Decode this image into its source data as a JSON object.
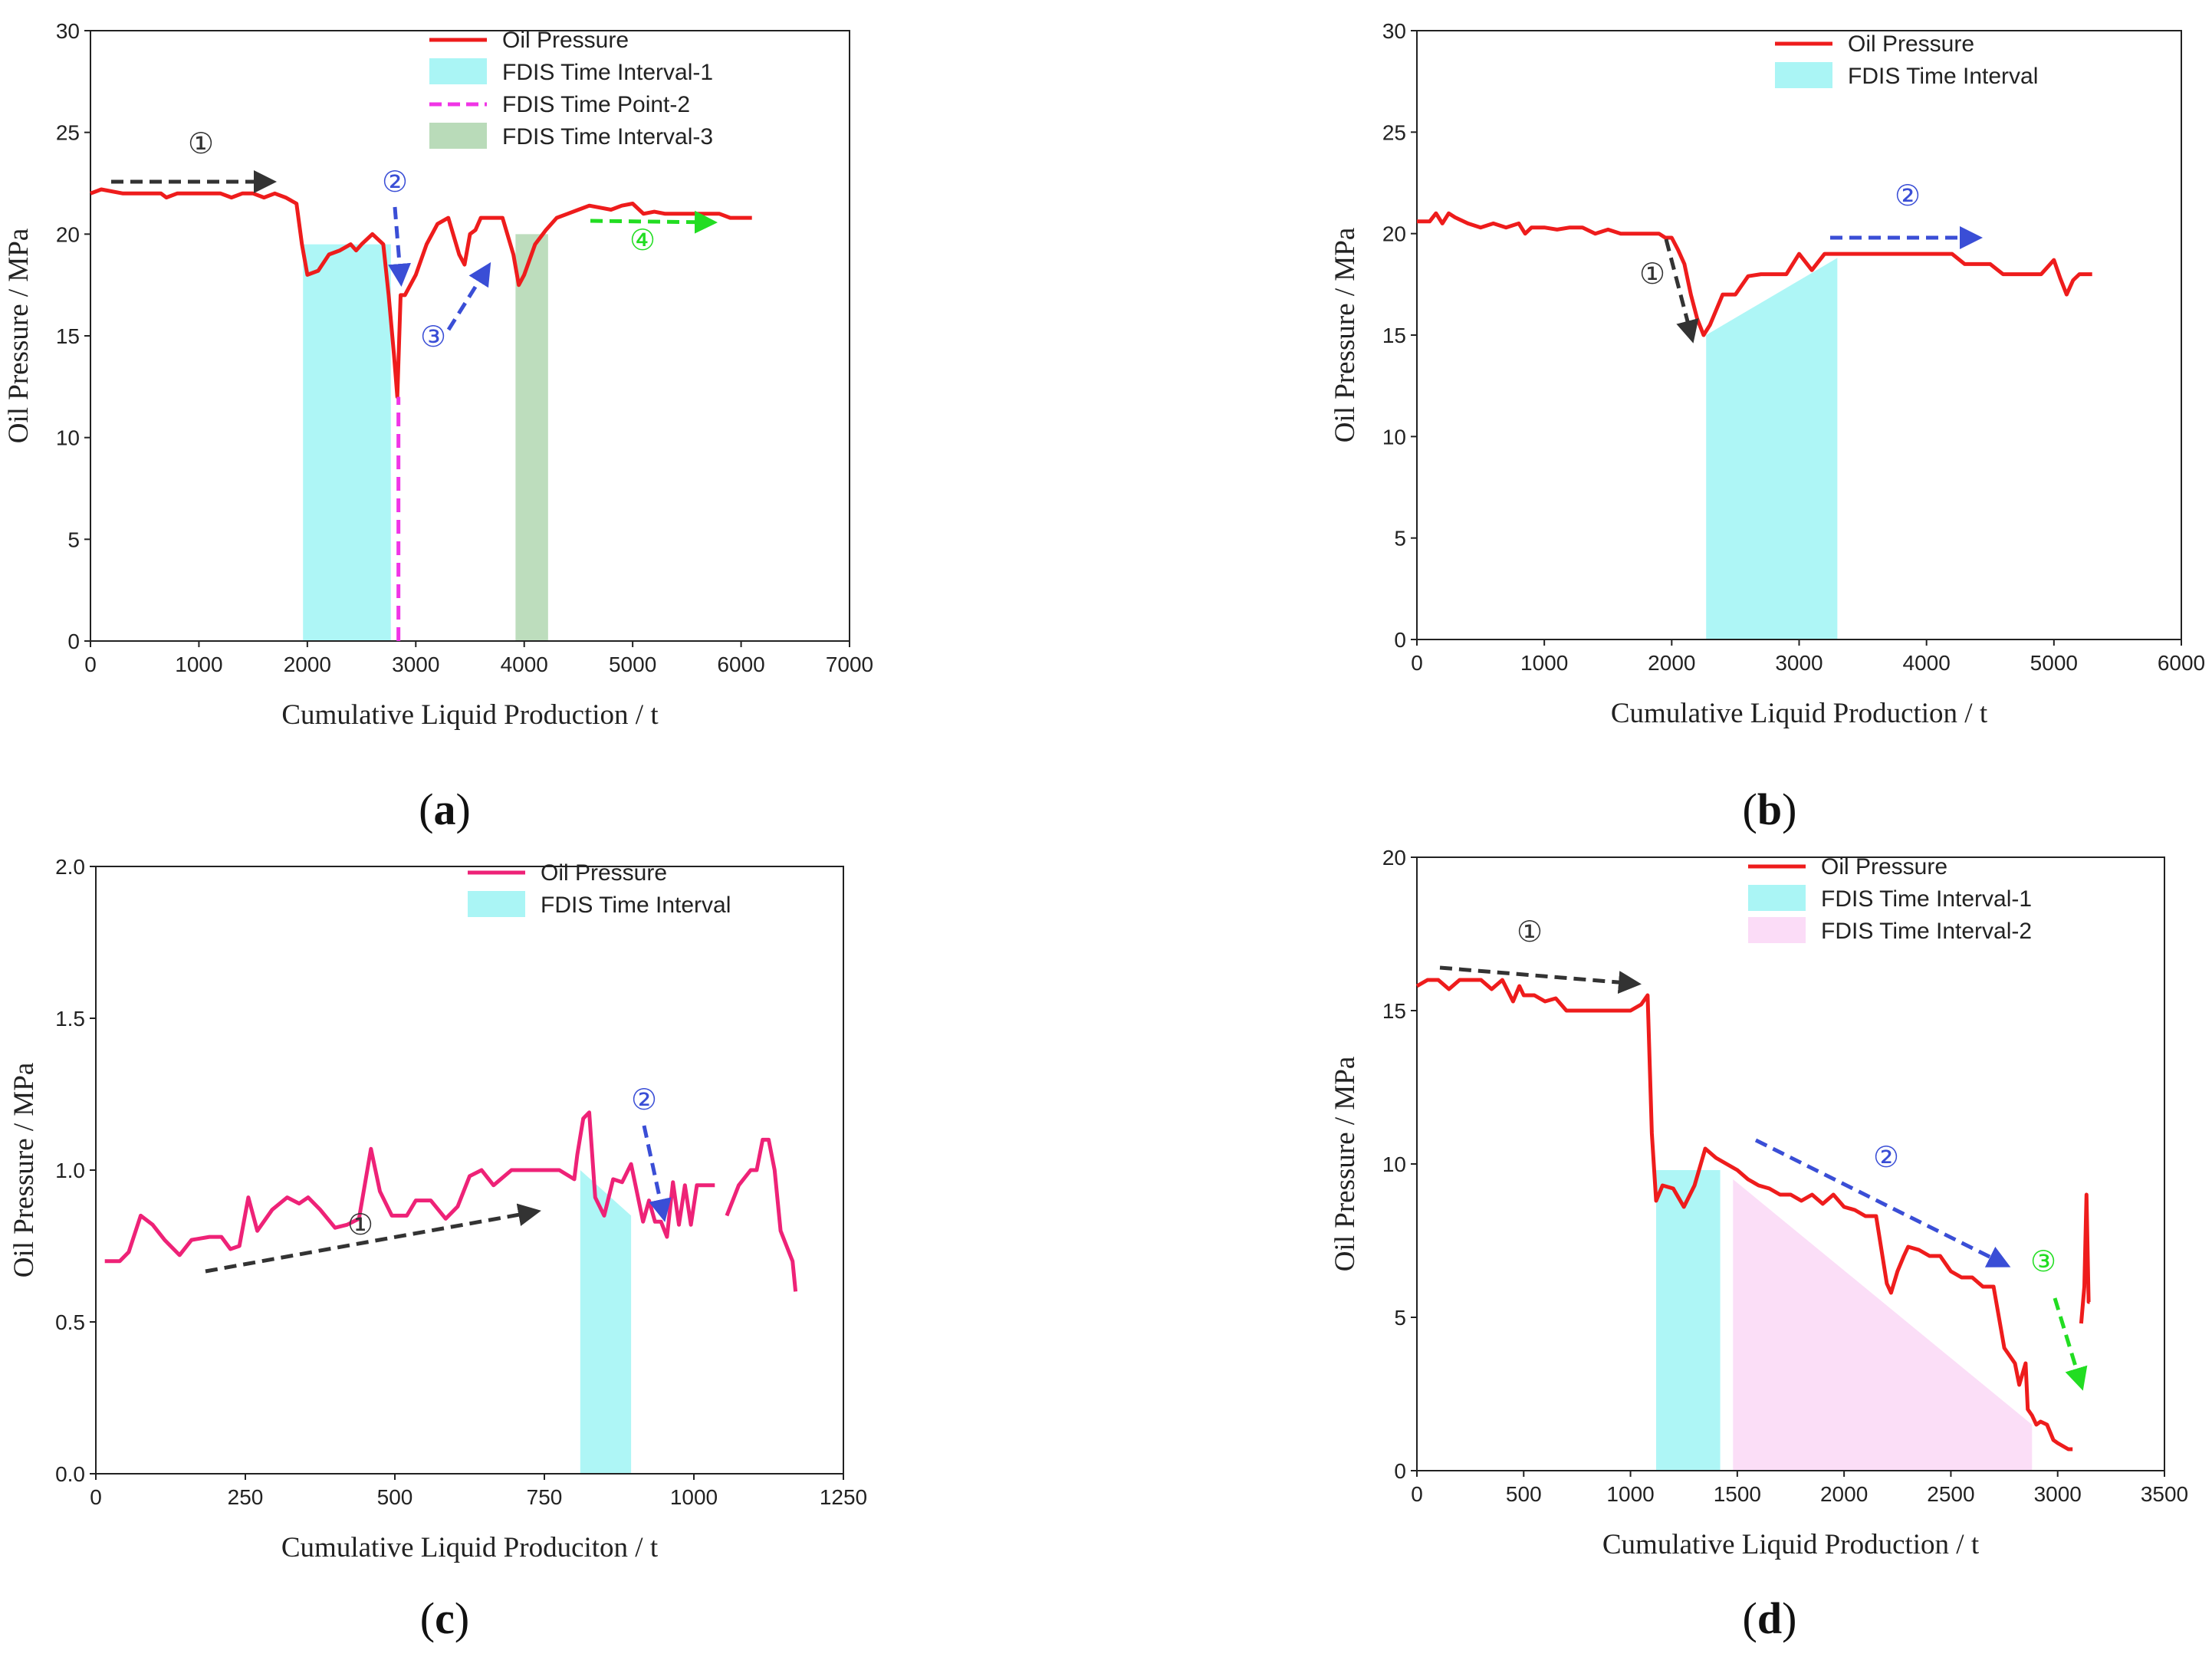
{
  "chart_data": [
    {
      "panel": "(a)",
      "panel_prefix": "(",
      "panel_letter": "a",
      "panel_suffix": ")",
      "type": "line",
      "xlabel": "Cumulative Liquid Production / t",
      "ylabel": "Oil Pressure / MPa",
      "xlim": [
        0,
        7000
      ],
      "ylim": [
        0,
        30
      ],
      "xticks": [
        0,
        1000,
        2000,
        3000,
        4000,
        5000,
        6000,
        7000
      ],
      "yticks": [
        0,
        5,
        10,
        15,
        20,
        25,
        30
      ],
      "legend_position": "top-right",
      "legend": [
        "Oil Pressure",
        "FDIS Time Interval-1",
        "FDIS Time Point-2",
        "FDIS Time Interval-3"
      ],
      "series": [
        {
          "name": "Oil Pressure",
          "color": "#ee1c1c",
          "x": [
            0,
            100,
            300,
            500,
            650,
            700,
            800,
            1000,
            1200,
            1300,
            1400,
            1500,
            1600,
            1700,
            1800,
            1900,
            1950,
            2000,
            2100,
            2200,
            2300,
            2400,
            2450,
            2500,
            2600,
            2700,
            2750,
            2800,
            2830,
            2860,
            2900,
            3000,
            3100,
            3200,
            3300,
            3400,
            3450,
            3500,
            3550,
            3600,
            3700,
            3800,
            3900,
            3950,
            4000,
            4100,
            4200,
            4300,
            4400,
            4500,
            4600,
            4700,
            4800,
            4900,
            5000,
            5100,
            5200,
            5300,
            5500,
            5800,
            5900,
            6000,
            6100
          ],
          "y": [
            22,
            22.2,
            22,
            22,
            22,
            21.8,
            22,
            22,
            22,
            21.8,
            22,
            22,
            21.8,
            22,
            21.8,
            21.5,
            19.5,
            18,
            18.2,
            19,
            19.2,
            19.5,
            19.2,
            19.5,
            20,
            19.5,
            17,
            14,
            12,
            17,
            17,
            18,
            19.5,
            20.5,
            20.8,
            19,
            18.5,
            20,
            20.2,
            20.8,
            20.8,
            20.8,
            19,
            17.5,
            18,
            19.5,
            20.2,
            20.8,
            21,
            21.2,
            21.4,
            21.3,
            21.2,
            21.4,
            21.5,
            21,
            21.1,
            21,
            21,
            21,
            20.8,
            20.8,
            20.8
          ]
        },
        {
          "name": "FDIS Time Interval-1",
          "type": "shaded-interval",
          "x_range": [
            1960,
            2770
          ],
          "y_top": 19.5,
          "color": "#aaf5f5"
        },
        {
          "name": "FDIS Time Point-2",
          "type": "vertical-line",
          "x": 2840,
          "y_range": [
            0,
            12
          ],
          "color": "#f035e6"
        },
        {
          "name": "FDIS Time Interval-3",
          "type": "shaded-interval",
          "x_range": [
            3920,
            4220
          ],
          "y_top": 20,
          "color": "#b9dbb9"
        }
      ],
      "annotations": [
        {
          "label": "①",
          "color": "#333333"
        },
        {
          "label": "②",
          "color": "#3a4ed6"
        },
        {
          "label": "③",
          "color": "#3a4ed6"
        },
        {
          "label": "④",
          "color": "#22dd22"
        }
      ]
    },
    {
      "panel": "(b)",
      "panel_prefix": "(",
      "panel_letter": "b",
      "panel_suffix": ")",
      "type": "line",
      "xlabel": "Cumulative Liquid Production / t",
      "ylabel": "Oil Pressure / MPa",
      "xlim": [
        0,
        6000
      ],
      "ylim": [
        0,
        30
      ],
      "xticks": [
        0,
        1000,
        2000,
        3000,
        4000,
        5000,
        6000
      ],
      "yticks": [
        0,
        5,
        10,
        15,
        20,
        25,
        30
      ],
      "legend_position": "top-right",
      "legend": [
        "Oil Pressure",
        "FDIS Time Interval"
      ],
      "series": [
        {
          "name": "Oil Pressure",
          "color": "#ee1c1c",
          "x": [
            0,
            100,
            150,
            200,
            250,
            300,
            400,
            500,
            600,
            700,
            800,
            850,
            900,
            1000,
            1100,
            1200,
            1300,
            1400,
            1500,
            1600,
            1700,
            1800,
            1900,
            1950,
            2000,
            2050,
            2100,
            2150,
            2200,
            2250,
            2300,
            2400,
            2500,
            2600,
            2700,
            2800,
            2900,
            3000,
            3100,
            3200,
            3300,
            3400,
            3500,
            3600,
            3700,
            3800,
            3900,
            4000,
            4100,
            4200,
            4300,
            4400,
            4500,
            4600,
            4700,
            4800,
            4900,
            5000,
            5050,
            5100,
            5150,
            5200,
            5250,
            5300
          ],
          "y": [
            20.6,
            20.6,
            21,
            20.5,
            21,
            20.8,
            20.5,
            20.3,
            20.5,
            20.3,
            20.5,
            20,
            20.3,
            20.3,
            20.2,
            20.3,
            20.3,
            20,
            20.2,
            20,
            20,
            20,
            20,
            19.8,
            19.8,
            19.2,
            18.5,
            17,
            15.8,
            15,
            15.5,
            17,
            17,
            17.9,
            18,
            18,
            18,
            19,
            18.2,
            19,
            19,
            19,
            19,
            19,
            19,
            19,
            19,
            19,
            19,
            19,
            18.5,
            18.5,
            18.5,
            18,
            18,
            18,
            18,
            18.7,
            17.8,
            17,
            17.7,
            18,
            18,
            18
          ]
        },
        {
          "name": "FDIS Time Interval",
          "type": "shaded-interval",
          "x_range": [
            2270,
            3300
          ],
          "y_top_start": 15,
          "y_top_end": 18.8,
          "color": "#aaf5f5"
        }
      ],
      "annotations": [
        {
          "label": "①",
          "color": "#333333"
        },
        {
          "label": "②",
          "color": "#3a4ed6"
        }
      ]
    },
    {
      "panel": "(c)",
      "panel_prefix": "(",
      "panel_letter": "c",
      "panel_suffix": ")",
      "type": "line",
      "xlabel": "Cumulative Liquid Produciton / t",
      "ylabel": "Oil Pressure / MPa",
      "xlim": [
        0,
        1250
      ],
      "ylim": [
        0,
        2.0
      ],
      "xticks": [
        0,
        250,
        500,
        750,
        1000,
        1250
      ],
      "yticks": [
        "0.0",
        "0.5",
        "1.0",
        "1.5",
        "2.0"
      ],
      "legend_position": "top-right",
      "legend": [
        "Oil Pressure",
        "FDIS Time Interval"
      ],
      "series": [
        {
          "name": "Oil Pressure",
          "color": "#ee2277",
          "segments": [
            {
              "x": [
                15,
                40,
                55,
                75,
                95,
                115,
                140,
                160,
                190,
                210,
                225,
                240,
                255,
                270,
                295,
                320,
                340,
                355,
                375,
                400,
                420,
                440,
                460,
                475,
                495,
                520,
                535,
                560,
                585,
                605,
                625,
                645,
                665,
                695,
                725,
                745,
                775,
                800,
                805,
                815,
                825,
                835,
                850,
                865,
                880,
                895,
                915,
                925,
                935,
                945,
                955,
                965,
                975,
                985,
                995,
                1005,
                1020,
                1035
              ],
              "y": [
                0.7,
                0.7,
                0.73,
                0.85,
                0.82,
                0.77,
                0.72,
                0.77,
                0.78,
                0.78,
                0.74,
                0.75,
                0.91,
                0.8,
                0.87,
                0.91,
                0.89,
                0.91,
                0.87,
                0.81,
                0.82,
                0.84,
                1.07,
                0.93,
                0.85,
                0.85,
                0.9,
                0.9,
                0.84,
                0.88,
                0.98,
                1.0,
                0.95,
                1.0,
                1.0,
                1.0,
                1.0,
                0.97,
                1.05,
                1.17,
                1.19,
                0.91,
                0.85,
                0.97,
                0.96,
                1.02,
                0.83,
                0.9,
                0.83,
                0.83,
                0.78,
                0.96,
                0.82,
                0.95,
                0.82,
                0.95,
                0.95,
                0.95
              ]
            },
            {
              "x": [
                1055,
                1075,
                1095,
                1105,
                1115,
                1125,
                1135,
                1145,
                1155,
                1165,
                1170
              ],
              "y": [
                0.85,
                0.95,
                1.0,
                1.0,
                1.1,
                1.1,
                1.0,
                0.8,
                0.75,
                0.7,
                0.6
              ]
            }
          ]
        },
        {
          "name": "FDIS Time Interval",
          "type": "shaded-interval",
          "x_range": [
            810,
            895
          ],
          "y_top_start": 1.0,
          "y_top_end": 0.85,
          "color": "#aaf5f5"
        }
      ],
      "annotations": [
        {
          "label": "①",
          "color": "#333333"
        },
        {
          "label": "②",
          "color": "#3a4ed6"
        }
      ]
    },
    {
      "panel": "(d)",
      "panel_prefix": "(",
      "panel_letter": "d",
      "panel_suffix": ")",
      "type": "line",
      "xlabel": "Cumulative Liquid Production / t",
      "ylabel": "Oil Pressure / MPa",
      "xlim": [
        0,
        3500
      ],
      "ylim": [
        0,
        20
      ],
      "xticks": [
        0,
        500,
        1000,
        1500,
        2000,
        2500,
        3000,
        3500
      ],
      "yticks": [
        0,
        5,
        10,
        15,
        20
      ],
      "legend_position": "top-right",
      "legend": [
        "Oil Pressure",
        "FDIS Time Interval-1",
        "FDIS Time Interval-2"
      ],
      "series": [
        {
          "name": "Oil Pressure",
          "color": "#ee1c1c",
          "segments": [
            {
              "x": [
                0,
                50,
                100,
                150,
                200,
                250,
                300,
                350,
                400,
                450,
                480,
                500,
                550,
                600,
                650,
                700,
                750,
                800,
                900,
                1000,
                1050,
                1080,
                1100,
                1120,
                1150,
                1200,
                1250,
                1300,
                1350,
                1400,
                1450,
                1500,
                1550,
                1600,
                1650,
                1700,
                1750,
                1800,
                1850,
                1900,
                1950,
                2000,
                2050,
                2100,
                2150,
                2200,
                2220,
                2250,
                2280,
                2300,
                2350,
                2400,
                2450,
                2500,
                2550,
                2600,
                2650,
                2700,
                2750,
                2800,
                2820,
                2850,
                2860,
                2880,
                2900,
                2920,
                2950,
                2980,
                3000,
                3050,
                3070
              ],
              "y": [
                15.8,
                16,
                16,
                15.7,
                16,
                16,
                16,
                15.7,
                16,
                15.3,
                15.8,
                15.5,
                15.5,
                15.3,
                15.4,
                15,
                15,
                15,
                15,
                15,
                15.2,
                15.5,
                11,
                8.8,
                9.3,
                9.2,
                8.6,
                9.3,
                10.5,
                10.2,
                10,
                9.8,
                9.5,
                9.3,
                9.2,
                9,
                9,
                8.8,
                9,
                8.7,
                9,
                8.6,
                8.5,
                8.3,
                8.3,
                6.1,
                5.8,
                6.5,
                7,
                7.3,
                7.2,
                7,
                7,
                6.5,
                6.3,
                6.3,
                6,
                6,
                4,
                3.5,
                2.8,
                3.5,
                2,
                1.8,
                1.5,
                1.6,
                1.5,
                1,
                0.9,
                0.7,
                0.7
              ]
            },
            {
              "x": [
                3110,
                3125,
                3135,
                3145,
                3150
              ],
              "y": [
                4.8,
                6.0,
                9.0,
                5.5,
                5.5
              ]
            }
          ]
        },
        {
          "name": "FDIS Time Interval-1",
          "type": "shaded-interval",
          "x_range": [
            1120,
            1420
          ],
          "y_top": 9.8,
          "color": "#aaf5f5"
        },
        {
          "name": "FDIS Time Interval-2",
          "type": "shaded-interval",
          "x_range": [
            1480,
            2880
          ],
          "y_top_start": 9.5,
          "y_top_end": 1.5,
          "color": "#fbdcf7"
        }
      ],
      "annotations": [
        {
          "label": "①",
          "color": "#333333"
        },
        {
          "label": "②",
          "color": "#3a4ed6"
        },
        {
          "label": "③",
          "color": "#22dd22"
        }
      ]
    }
  ]
}
